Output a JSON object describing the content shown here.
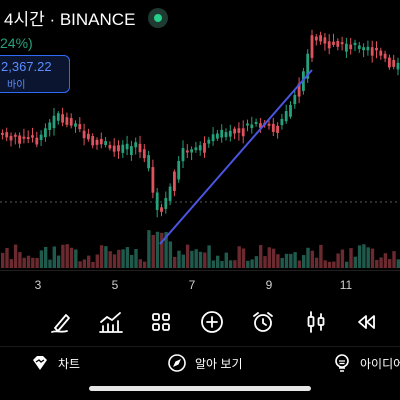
{
  "header": {
    "title": "4시간 · BINANCE",
    "change_partial": "24%)",
    "price_partial": "2,367.22",
    "action_label": "바이"
  },
  "colors": {
    "up": "#26a17b",
    "down": "#e0535e",
    "up_volume": "#1f5a4c",
    "down_volume": "#6a2a2f",
    "trendline": "#4a56e2",
    "accent": "#2f6cf6",
    "live": "#26d08a"
  },
  "chart_data": {
    "type": "candlestick",
    "x_tick_labels": [
      "3",
      "5",
      "7",
      "9",
      "11"
    ],
    "trendline_drawn": true,
    "reference_line": "dashed horizontal"
  },
  "toolbar": {
    "tools": [
      "pen-icon",
      "chart-indicators-icon",
      "grid-icon",
      "add-icon",
      "alarm-clock-icon",
      "candlestick-icon",
      "rewind-icon"
    ]
  },
  "bottom_tabs": [
    {
      "label": "차트",
      "icon": "diamond-chart-icon"
    },
    {
      "label": "알아 보기",
      "icon": "compass-icon"
    },
    {
      "label": "아이디어",
      "icon": "lightbulb-icon"
    }
  ]
}
